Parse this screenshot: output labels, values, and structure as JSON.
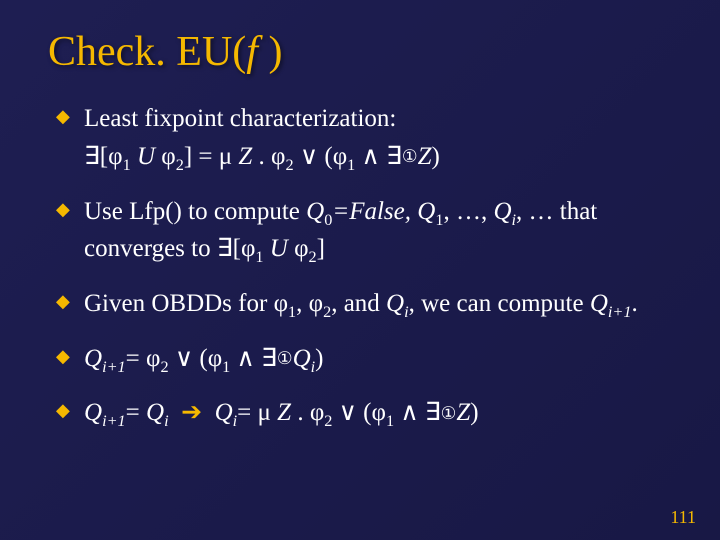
{
  "background_color": "#1a1a4d",
  "accent_color": "#f5b800",
  "text_color": "#ffffff",
  "title_fontsize": 42,
  "body_fontsize": 25,
  "pagenum_fontsize": 18,
  "title_prefix": "Check. EU(",
  "title_var": "f",
  "title_suffix": " )",
  "bullet1_text": "Least fixpoint characterization:",
  "bullet1_formula": "∃[φ₁ U φ₂] = μ Z . φ₂ ∨ (φ₁ ∧ ∃◯Z)",
  "bullet2_a": "Use Lfp() to compute ",
  "bullet2_b": "Q",
  "bullet2_c": "₀",
  "bullet2_d": "=False, Q",
  "bullet2_e": "₁",
  "bullet2_f": ", …, Q",
  "bullet2_g": "i",
  "bullet2_h": ", … that converges to ∃[φ₁ ",
  "bullet2_i": "U",
  "bullet2_j": " φ₂]",
  "bullet3_a": "Given OBDDs for φ₁, φ₂, and ",
  "bullet3_b": "Q",
  "bullet3_c": "i",
  "bullet3_d": ", we can compute ",
  "bullet3_e": "Q",
  "bullet3_f": "i+1",
  "bullet3_g": ".",
  "bullet4_a": "Q",
  "bullet4_b": "i+1",
  "bullet4_c": "= φ₂ ∨ (φ₁ ∧ ∃◯",
  "bullet4_d": "Q",
  "bullet4_e": "i",
  "bullet4_f": ")",
  "bullet5_a": "Q",
  "bullet5_b": "i+1",
  "bullet5_c": "= ",
  "bullet5_d": "Q",
  "bullet5_e": "i",
  "bullet5_f": "  ➔  ",
  "bullet5_g": "Q",
  "bullet5_h": "i",
  "bullet5_i": "= μ Z . φ₂ ∨ (φ₁ ∧ ∃◯Z)",
  "page_number": "111"
}
